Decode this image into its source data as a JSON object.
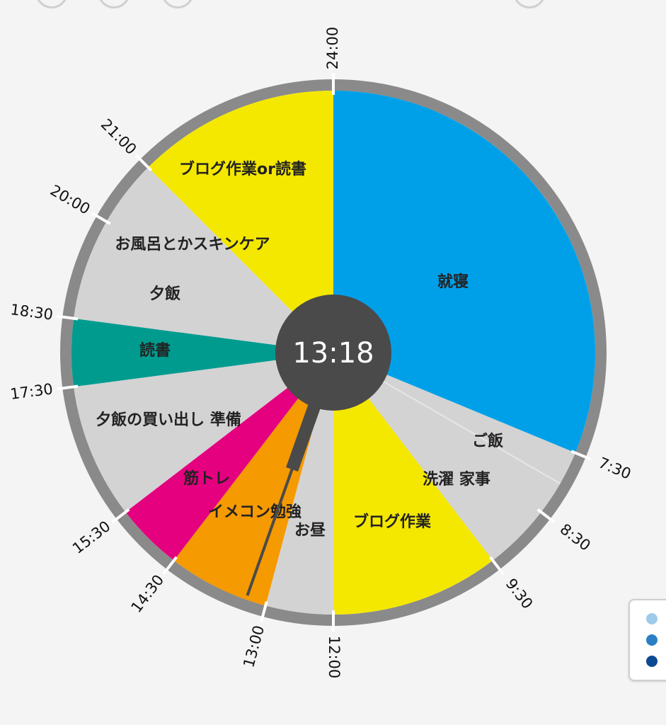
{
  "clock": {
    "current_time": "13:18",
    "hand_time": "13:18"
  },
  "schedule": [
    {
      "label": "就寝",
      "start": "0:00",
      "end": "7:30",
      "color": "#00A0E9"
    },
    {
      "label": "ご飯 洗濯 家事",
      "start": "7:30",
      "end": "9:30",
      "color": "#D3D3D3"
    },
    {
      "label": "ブログ作業",
      "start": "9:30",
      "end": "12:00",
      "color": "#F4E800"
    },
    {
      "label": "お昼",
      "start": "12:00",
      "end": "13:00",
      "color": "#D3D3D3"
    },
    {
      "label": "イメコン勉強",
      "start": "13:00",
      "end": "14:30",
      "color": "#F59A00"
    },
    {
      "label": "筋トレ",
      "start": "14:30",
      "end": "15:30",
      "color": "#E4007F"
    },
    {
      "label": "夕飯の買い出し 準備",
      "start": "15:30",
      "end": "17:30",
      "color": "#D3D3D3"
    },
    {
      "label": "読書",
      "start": "17:30",
      "end": "18:30",
      "color": "#009B8F"
    },
    {
      "label": "夕飯 お風呂とかスキンケア",
      "start": "18:30",
      "end": "21:00",
      "color": "#D3D3D3"
    },
    {
      "label": "ブログ作業or読書",
      "start": "21:00",
      "end": "24:00",
      "color": "#F4E800"
    }
  ],
  "labels": {
    "sleep": "就寝",
    "meal": "ご飯",
    "laundry": "洗濯 家事",
    "blog_work": "ブログ作業",
    "lunch": "お昼",
    "imacon": "イメコン勉強",
    "workout": "筋トレ",
    "shopping": "夕飯の買い出し 準備",
    "reading": "読書",
    "dinner": "夕飯",
    "bath": "お風呂とかスキンケア",
    "blog_or_read": "ブログ作業or読書"
  },
  "time_marks": [
    "24:00",
    "7:30",
    "8:30",
    "9:30",
    "12:00",
    "13:00",
    "14:30",
    "15:30",
    "17:30",
    "18:30",
    "20:00",
    "21:00"
  ],
  "legend": {
    "dot_colors": [
      "#9ecbea",
      "#2a7fc4",
      "#0b4a91"
    ]
  }
}
